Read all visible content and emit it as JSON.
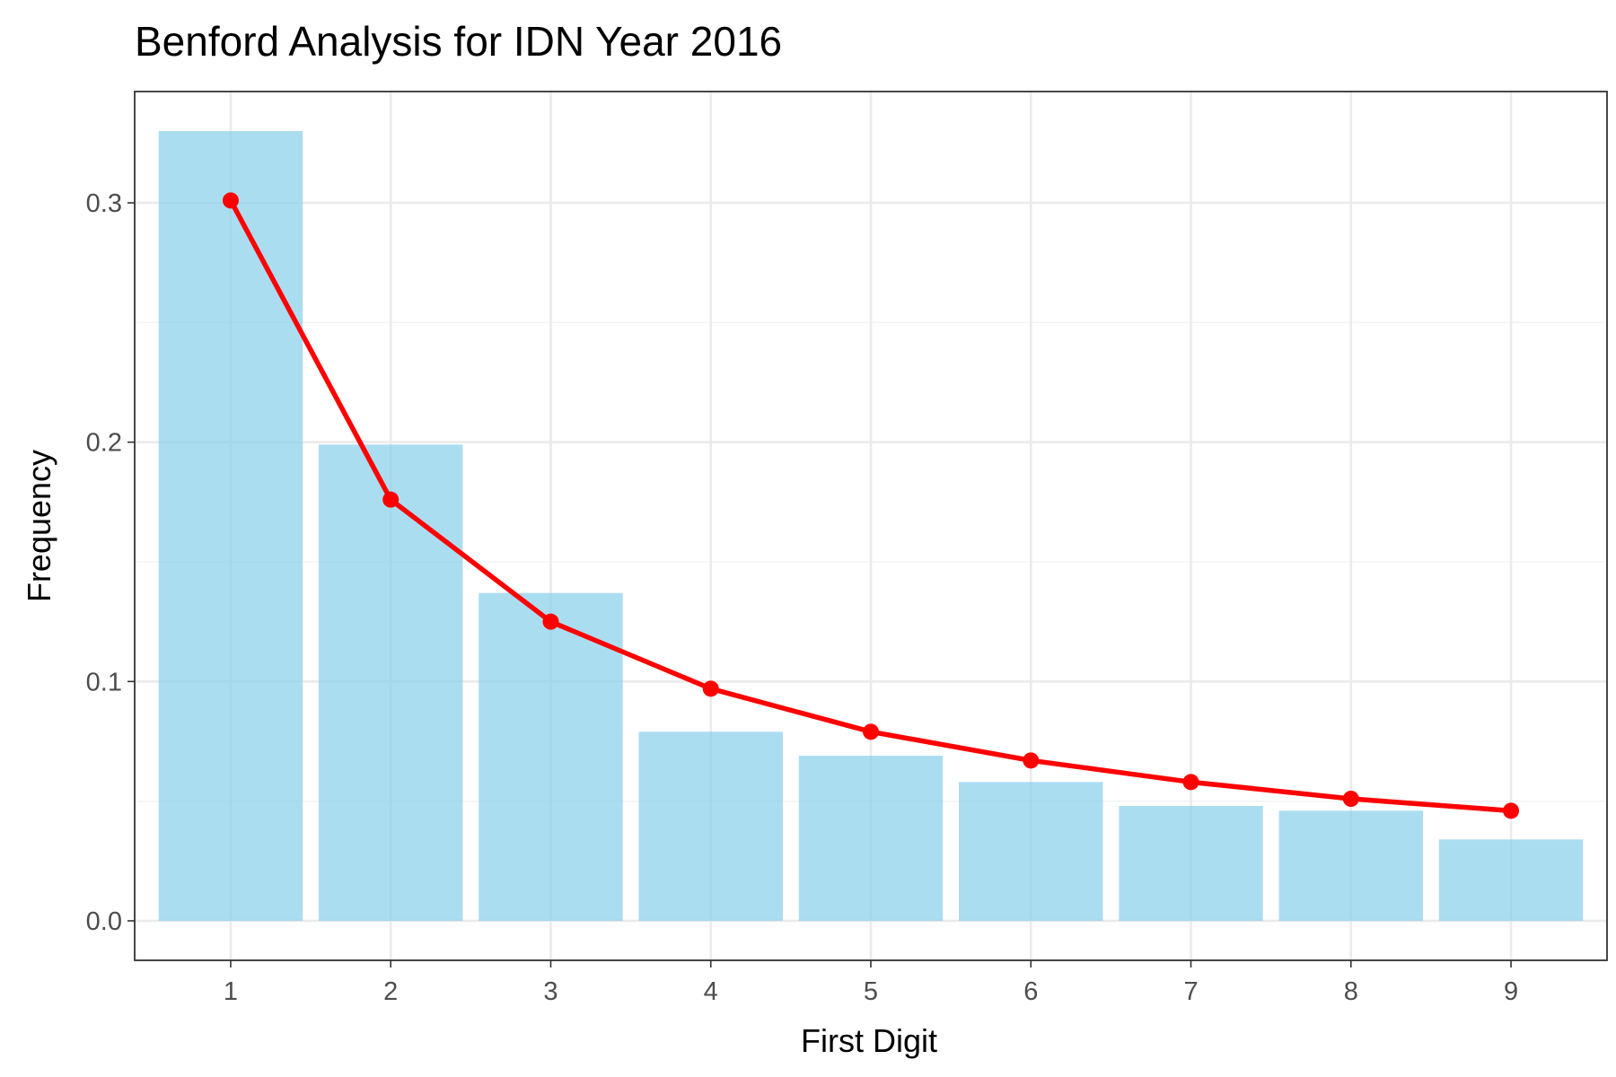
{
  "chart_data": {
    "type": "bar",
    "title": "Benford Analysis for IDN Year 2016",
    "xlabel": "First Digit",
    "ylabel": "Frequency",
    "categories": [
      "1",
      "2",
      "3",
      "4",
      "5",
      "6",
      "7",
      "8",
      "9"
    ],
    "series": [
      {
        "type": "bar",
        "values": [
          0.33,
          0.199,
          0.137,
          0.079,
          0.069,
          0.058,
          0.048,
          0.046,
          0.034
        ],
        "color": "#87CEEB",
        "opacity": 0.7
      },
      {
        "type": "line",
        "values": [
          0.301,
          0.176,
          0.125,
          0.097,
          0.079,
          0.067,
          0.058,
          0.051,
          0.046
        ],
        "color": "#FF0000"
      }
    ],
    "yticks": [
      0.0,
      0.1,
      0.2,
      0.3
    ],
    "ytick_labels": [
      "0.0",
      "0.1",
      "0.2",
      "0.3"
    ],
    "ylim": [
      -0.0165,
      0.3465
    ],
    "grid": true,
    "legend": "none"
  }
}
